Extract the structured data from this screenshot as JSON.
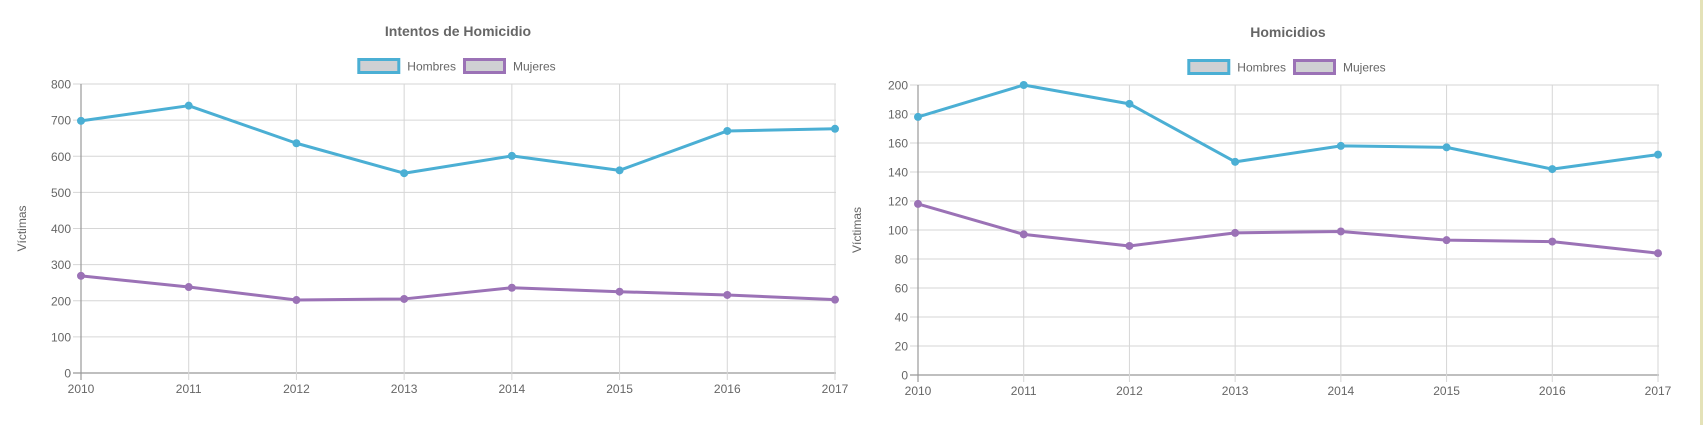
{
  "chart_data": [
    {
      "type": "line",
      "title": "Intentos de Homicidio",
      "xlabel": "",
      "ylabel": "Víctimas",
      "categories": [
        "2010",
        "2011",
        "2012",
        "2013",
        "2014",
        "2015",
        "2016",
        "2017"
      ],
      "ylim": [
        0,
        800
      ],
      "yticks": [
        0,
        100,
        200,
        300,
        400,
        500,
        600,
        700,
        800
      ],
      "grid": true,
      "legend_position": "top-center",
      "series": [
        {
          "name": "Hombres",
          "color": "#4bafd4",
          "values": [
            698,
            740,
            636,
            553,
            601,
            561,
            670,
            676
          ]
        },
        {
          "name": "Mujeres",
          "color": "#9b72b6",
          "values": [
            269,
            238,
            202,
            205,
            236,
            225,
            216,
            203
          ]
        }
      ]
    },
    {
      "type": "line",
      "title": "Homicidios",
      "xlabel": "",
      "ylabel": "Víctimas",
      "categories": [
        "2010",
        "2011",
        "2012",
        "2013",
        "2014",
        "2015",
        "2016",
        "2017"
      ],
      "ylim": [
        0,
        200
      ],
      "yticks": [
        0,
        20,
        40,
        60,
        80,
        100,
        120,
        140,
        160,
        180,
        200
      ],
      "grid": true,
      "legend_position": "top-center",
      "series": [
        {
          "name": "Hombres",
          "color": "#4bafd4",
          "values": [
            178,
            200,
            187,
            147,
            158,
            157,
            142,
            152
          ]
        },
        {
          "name": "Mujeres",
          "color": "#9b72b6",
          "values": [
            118,
            97,
            89,
            98,
            99,
            93,
            92,
            84
          ]
        }
      ]
    }
  ],
  "legend_swatch_fill": "#cfd0d3"
}
